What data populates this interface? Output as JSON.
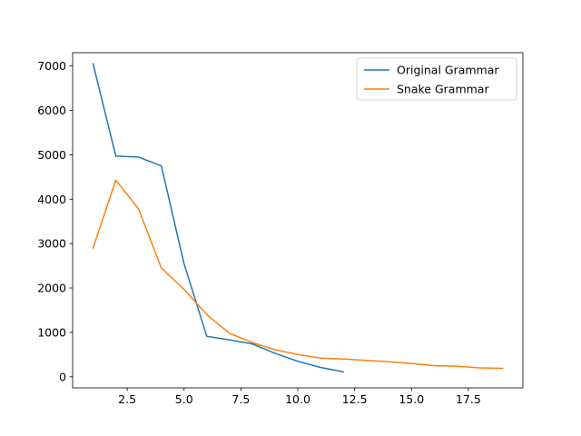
{
  "chart_data": {
    "type": "line",
    "title": "",
    "xlabel": "",
    "ylabel": "",
    "xlim": [
      0.1,
      19.9
    ],
    "ylim": [
      -250,
      7300
    ],
    "grid": false,
    "legend_position": "top-right",
    "x_ticks": [
      2.5,
      5.0,
      7.5,
      10.0,
      12.5,
      15.0,
      17.5
    ],
    "x_tick_labels": [
      "2.5",
      "5.0",
      "7.5",
      "10.0",
      "12.5",
      "15.0",
      "17.5"
    ],
    "y_ticks": [
      0,
      1000,
      2000,
      3000,
      4000,
      5000,
      6000,
      7000
    ],
    "y_tick_labels": [
      "0",
      "1000",
      "2000",
      "3000",
      "4000",
      "5000",
      "6000",
      "7000"
    ],
    "series": [
      {
        "name": "Original Grammar",
        "color": "#1f77b4",
        "x": [
          1,
          2,
          3,
          4,
          5,
          6,
          7,
          8,
          9,
          10,
          11,
          12
        ],
        "y": [
          7050,
          4970,
          4950,
          4750,
          2550,
          910,
          830,
          740,
          530,
          350,
          210,
          110
        ]
      },
      {
        "name": "Snake Grammar",
        "color": "#ff7f0e",
        "x": [
          1,
          2,
          3,
          4,
          5,
          6,
          7,
          8,
          9,
          10,
          11,
          12,
          13,
          14,
          15,
          16,
          17,
          18,
          19
        ],
        "y": [
          2900,
          4430,
          3780,
          2450,
          1970,
          1400,
          980,
          770,
          610,
          500,
          420,
          400,
          370,
          340,
          300,
          250,
          240,
          200,
          190
        ]
      }
    ]
  }
}
